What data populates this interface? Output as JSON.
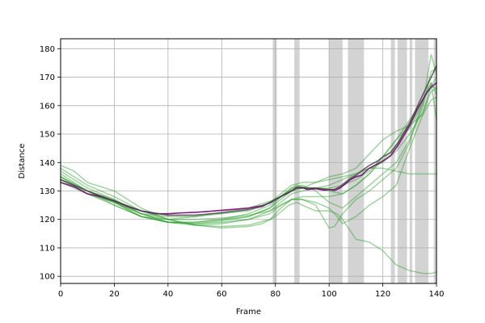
{
  "chart_data": {
    "type": "line",
    "title": "",
    "xlabel": "Frame",
    "ylabel": "Distance",
    "xlim": [
      0,
      140
    ],
    "ylim": [
      97.5,
      183.5
    ],
    "xticks": [
      0,
      20,
      40,
      60,
      80,
      100,
      120,
      140
    ],
    "yticks": [
      100,
      110,
      120,
      130,
      140,
      150,
      160,
      170,
      180
    ],
    "grid": true,
    "shaded_spans": [
      [
        79,
        80.5
      ],
      [
        87,
        89
      ],
      [
        100,
        105
      ],
      [
        107,
        113
      ],
      [
        123,
        124.5
      ],
      [
        125.5,
        129
      ],
      [
        130,
        131
      ],
      [
        132,
        137
      ],
      [
        139,
        140
      ]
    ],
    "colors": {
      "green": "#2ca02c",
      "purple": "#7b0f7b",
      "dark": "#404040",
      "span": "#d3d3d3",
      "grid": "#b0b0b0"
    },
    "series": [
      {
        "x": [
          0,
          5,
          10,
          20,
          30,
          40,
          50,
          60,
          70,
          75,
          80,
          85,
          88,
          90,
          95,
          100,
          103,
          105,
          110,
          115,
          120,
          125,
          130,
          135,
          138,
          140
        ],
        "y": [
          139,
          137,
          133,
          130,
          124,
          120,
          118,
          117,
          117.5,
          118.5,
          121,
          125,
          126,
          125,
          123,
          123,
          122,
          120,
          113,
          112,
          109,
          104,
          102,
          101,
          101,
          101.5
        ]
      },
      {
        "x": [
          0,
          10,
          20,
          30,
          40,
          50,
          60,
          70,
          78,
          82,
          86,
          90,
          95,
          100,
          103,
          105,
          110,
          115,
          120,
          125,
          130,
          135,
          138,
          140
        ],
        "y": [
          138,
          132,
          128,
          123,
          120,
          118,
          117.5,
          118,
          120,
          124,
          127,
          127,
          126,
          124,
          121,
          118.5,
          121,
          125,
          128,
          132,
          145,
          157,
          167,
          166
        ]
      },
      {
        "x": [
          0,
          10,
          20,
          30,
          40,
          50,
          60,
          70,
          78,
          82,
          86,
          90,
          95,
          100,
          105,
          110,
          115,
          120,
          125,
          130,
          135,
          138,
          140
        ],
        "y": [
          136,
          130,
          126,
          121,
          119,
          118,
          118.5,
          120,
          122,
          125,
          127,
          128,
          128,
          128,
          129,
          132,
          136,
          142,
          148,
          153,
          162,
          168,
          155
        ]
      },
      {
        "x": [
          0,
          10,
          20,
          30,
          40,
          50,
          60,
          70,
          78,
          82,
          86,
          90,
          95,
          100,
          102,
          105,
          110,
          115,
          120,
          125,
          130,
          135,
          140
        ],
        "y": [
          135,
          129,
          125,
          121,
          120,
          120,
          120.5,
          121.5,
          123,
          125,
          127,
          127,
          125,
          117,
          117.5,
          122,
          127,
          130,
          134,
          138,
          147,
          162,
          170
        ]
      },
      {
        "x": [
          0,
          10,
          20,
          30,
          40,
          50,
          60,
          70,
          78,
          82,
          86,
          90,
          95,
          100,
          105,
          110,
          115,
          120,
          125,
          130,
          135,
          138,
          140
        ],
        "y": [
          135,
          130,
          125,
          121,
          119,
          118.5,
          119.5,
          121,
          124,
          128,
          131,
          132,
          130,
          126,
          124,
          128,
          132,
          136,
          140,
          148,
          160,
          172,
          173
        ]
      },
      {
        "x": [
          0,
          10,
          20,
          30,
          40,
          50,
          60,
          70,
          78,
          82,
          86,
          90,
          95,
          100,
          105,
          110,
          115,
          120,
          125,
          130,
          135,
          138,
          140
        ],
        "y": [
          134,
          129,
          126,
          121,
          119,
          118.5,
          119,
          120,
          123,
          126,
          129,
          130,
          131,
          132,
          134,
          136,
          138,
          138,
          137,
          136,
          136,
          136,
          136
        ]
      },
      {
        "x": [
          0,
          10,
          20,
          30,
          40,
          50,
          60,
          70,
          78,
          82,
          86,
          90,
          95,
          100,
          105,
          110,
          115,
          120,
          125,
          130,
          135,
          138,
          140
        ],
        "y": [
          137,
          131,
          127,
          122,
          119,
          119,
          120,
          121,
          124,
          127,
          130,
          131,
          133,
          135,
          136,
          138,
          143,
          148,
          151,
          153,
          157,
          162,
          163
        ]
      },
      {
        "x": [
          0,
          10,
          20,
          30,
          40,
          50,
          60,
          70,
          78,
          82,
          86,
          88,
          92,
          95,
          100,
          105,
          110,
          115,
          120,
          125,
          130,
          135,
          138,
          140
        ],
        "y": [
          133,
          129,
          126,
          122,
          119,
          119,
          120,
          122,
          125,
          128,
          131,
          132,
          131,
          131,
          130,
          129,
          132,
          136,
          141,
          146,
          152,
          161,
          178,
          171
        ]
      },
      {
        "x": [
          0,
          10,
          20,
          30,
          40,
          50,
          60,
          70,
          80,
          85,
          88,
          92,
          95,
          100,
          105,
          110,
          115,
          120,
          125,
          130,
          135,
          138,
          140
        ],
        "y": [
          134,
          130,
          126,
          122,
          120,
          121,
          122.5,
          124,
          127,
          130,
          131.5,
          131,
          131,
          131,
          132,
          134,
          137,
          142,
          148,
          155,
          162,
          168,
          164
        ]
      },
      {
        "x": [
          0,
          10,
          20,
          30,
          40,
          50,
          60,
          70,
          78,
          82,
          86,
          90,
          95,
          100,
          105,
          110,
          115,
          120,
          125,
          130,
          135,
          138,
          140
        ],
        "y": [
          135,
          130,
          127,
          122,
          121,
          121,
          122,
          123,
          126,
          129,
          132,
          133,
          133,
          134,
          135,
          136,
          138,
          140,
          144,
          150,
          158,
          165,
          166
        ]
      },
      {
        "x": [
          0,
          5,
          10,
          15,
          20,
          25,
          30,
          35,
          40,
          45,
          50,
          55,
          60,
          65,
          70,
          75,
          78,
          80,
          83,
          86,
          88,
          90,
          92,
          95,
          98,
          100,
          102,
          104,
          106,
          108,
          110,
          112,
          115,
          118,
          120,
          123,
          126,
          130,
          133,
          136,
          138,
          140
        ],
        "y": [
          133,
          131.5,
          129,
          128,
          126.5,
          124.5,
          123,
          122,
          122,
          122.3,
          122.5,
          122.8,
          123.2,
          123.6,
          124,
          124.8,
          125.8,
          127,
          128.5,
          130,
          131.2,
          131.2,
          130.5,
          130.8,
          130.3,
          130.5,
          130.2,
          131,
          132.5,
          134,
          135,
          135.5,
          138,
          139.5,
          140.5,
          142.5,
          146.5,
          153,
          159,
          164,
          166.5,
          168
        ]
      },
      {
        "x": [
          0,
          10,
          20,
          30,
          40,
          50,
          60,
          70,
          75,
          80,
          85,
          88,
          90,
          95,
          100,
          102,
          104,
          106,
          108,
          110,
          112,
          115,
          118,
          120,
          123,
          126,
          130,
          133,
          136,
          138,
          140
        ],
        "y": [
          134,
          130,
          126.5,
          123,
          121.5,
          121.5,
          122.3,
          123.5,
          124.5,
          127,
          129.5,
          131,
          131,
          131,
          130.5,
          130.5,
          131.5,
          133,
          134.5,
          135.5,
          137,
          139,
          140.5,
          142,
          143.5,
          147.5,
          154,
          160,
          166,
          170,
          174
        ]
      }
    ]
  }
}
